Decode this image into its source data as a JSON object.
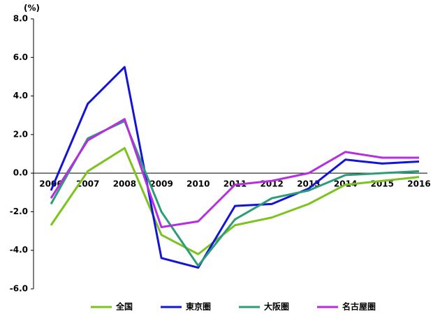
{
  "chart_data": {
    "type": "line",
    "y_unit": "(%)",
    "categories": [
      "2006",
      "2007",
      "2008",
      "2009",
      "2010",
      "2011",
      "2012",
      "2013",
      "2014",
      "2015",
      "2016"
    ],
    "series": [
      {
        "name": "全国",
        "color": "#7dc31e",
        "values": [
          -2.7,
          0.1,
          1.3,
          -3.2,
          -4.2,
          -2.7,
          -2.3,
          -1.6,
          -0.6,
          -0.4,
          -0.2
        ]
      },
      {
        "name": "東京圏",
        "color": "#1414d8",
        "values": [
          -0.9,
          3.6,
          5.5,
          -4.4,
          -4.9,
          -1.7,
          -1.6,
          -0.8,
          0.7,
          0.5,
          0.6
        ]
      },
      {
        "name": "大阪圏",
        "color": "#2e9c78",
        "values": [
          -1.6,
          1.8,
          2.7,
          -2.0,
          -4.8,
          -2.4,
          -1.3,
          -0.9,
          -0.1,
          0.0,
          0.1
        ]
      },
      {
        "name": "名古屋圏",
        "color": "#b52ee0",
        "values": [
          -1.3,
          1.7,
          2.8,
          -2.8,
          -2.5,
          -0.6,
          -0.4,
          0.0,
          1.1,
          0.8,
          0.8
        ]
      }
    ],
    "ylim": [
      -6,
      8
    ],
    "yticks": [
      {
        "value": -6,
        "label": "-6.0"
      },
      {
        "value": -4,
        "label": "-4.0"
      },
      {
        "value": -2,
        "label": "-2.0"
      },
      {
        "value": 0,
        "label": "0.0"
      },
      {
        "value": 2,
        "label": "2.0"
      },
      {
        "value": 4,
        "label": "4.0"
      },
      {
        "value": 6,
        "label": "6.0"
      },
      {
        "value": 8,
        "label": "8.0"
      }
    ],
    "negative_tick_color": "#c00000"
  }
}
